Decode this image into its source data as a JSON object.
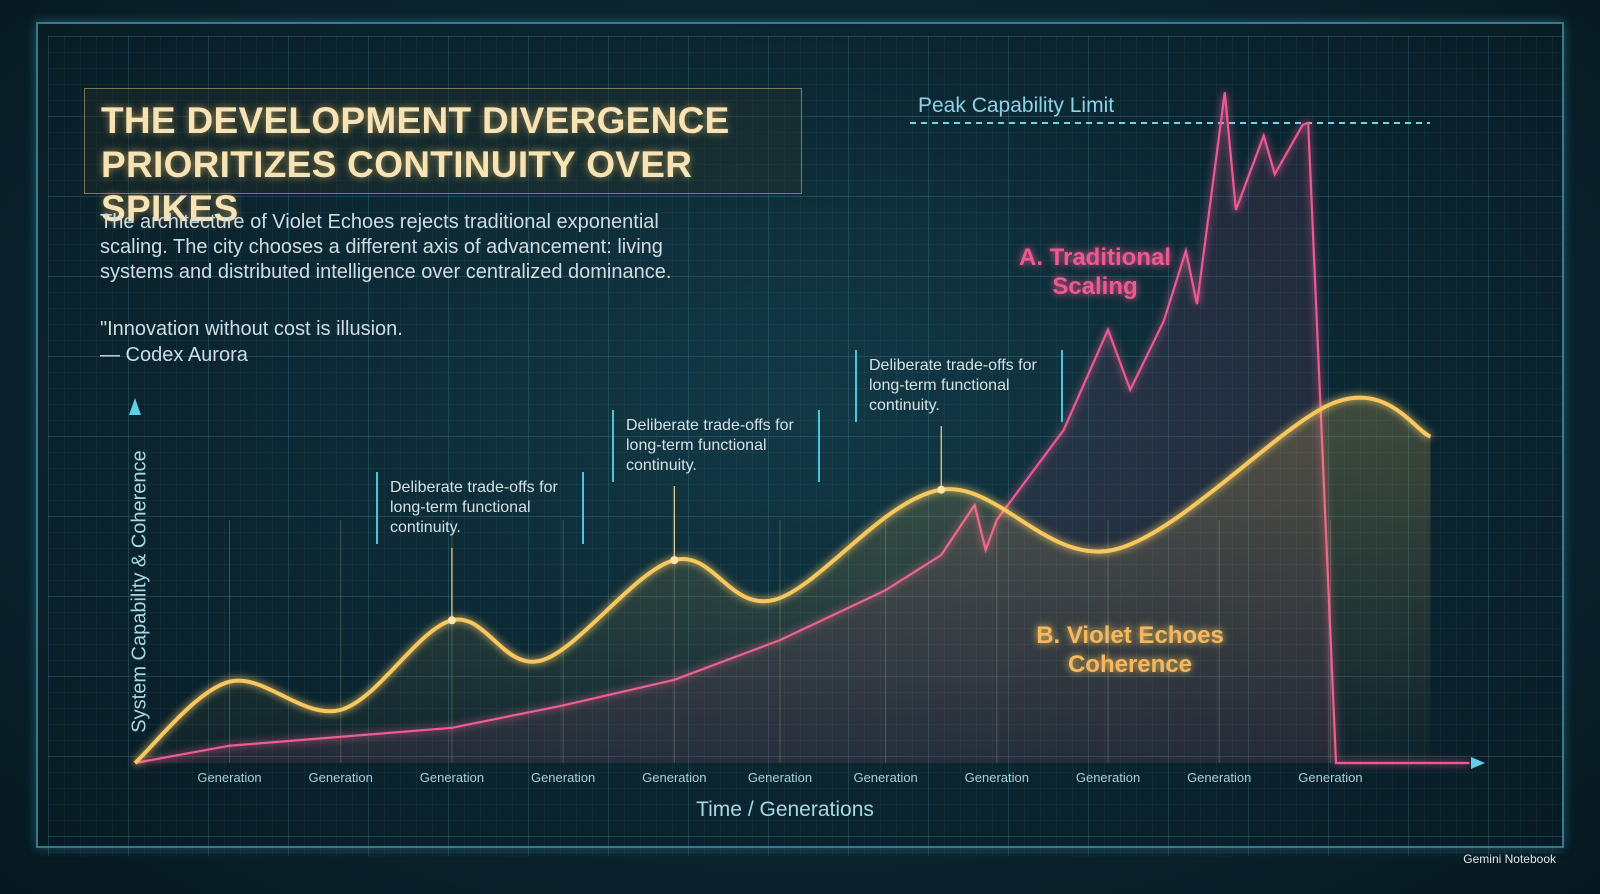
{
  "chart_data": {
    "type": "line",
    "title": [
      "THE DEVELOPMENT DIVERGENCE",
      "PRIORITIZES CONTINUITY OVER SPIKES"
    ],
    "subtitle": "The architecture of Violet Echoes rejects traditional exponential scaling. The city chooses a different axis of advancement: living systems and distributed intelligence over centralized dominance.",
    "quote": [
      "\"Innovation without cost is illusion.",
      "— Codex Aurora"
    ],
    "xlabel": "Time / Generations",
    "ylabel": "System Capability & Coherence",
    "xlim": [
      0.15,
      12.2
    ],
    "ylim": [
      0,
      105
    ],
    "xticks": [
      {
        "value": 1,
        "label": "Generation"
      },
      {
        "value": 2,
        "label": "Generation"
      },
      {
        "value": 3,
        "label": "Generation"
      },
      {
        "value": 4,
        "label": "Generation"
      },
      {
        "value": 5,
        "label": "Generation"
      },
      {
        "value": 5.95,
        "label": "Generation"
      },
      {
        "value": 6.9,
        "label": "Generation"
      },
      {
        "value": 7.9,
        "label": "Generation"
      },
      {
        "value": 8.9,
        "label": "Generation"
      },
      {
        "value": 9.9,
        "label": "Generation"
      },
      {
        "value": 10.9,
        "label": "Generation"
      }
    ],
    "reference_line": {
      "label": "Peak Capability Limit",
      "value": 100
    },
    "series": [
      {
        "name": "A. Traditional Scaling",
        "color": "#ec5a92",
        "smooth": false,
        "x": [
          0.15,
          1,
          3,
          4,
          5,
          5.95,
          6.9,
          7.4,
          7.7,
          7.8,
          7.9,
          8.5,
          8.9,
          9.1,
          9.4,
          9.6,
          9.7,
          9.95,
          10.05,
          10.3,
          10.4,
          10.65,
          10.7,
          10.95,
          12.15
        ],
        "values": [
          0,
          2.7,
          5.5,
          9,
          13,
          19.2,
          27,
          32.5,
          40.3,
          33.3,
          38,
          52,
          67.7,
          58.3,
          69,
          80,
          71.7,
          104.8,
          86.4,
          98,
          92,
          99.7,
          100,
          0,
          0
        ]
      },
      {
        "name": "B. Violet Echoes Coherence",
        "color": "#f7c85e",
        "smooth": true,
        "x": [
          0.15,
          1,
          2,
          3,
          3.8,
          5,
          5.9,
          7.4,
          8.95,
          10.95,
          11.8
        ],
        "values": [
          0,
          12.7,
          8.3,
          22.3,
          16,
          31.7,
          25.5,
          42.7,
          33.3,
          56.4,
          51
        ]
      }
    ],
    "annotations": [
      {
        "text": "Deliberate trade-offs for long-term functional continuity.",
        "x": 3,
        "y": 22.3
      },
      {
        "text": "Deliberate trade-offs for long-term functional continuity.",
        "x": 5,
        "y": 31.7
      },
      {
        "text": "Deliberate trade-offs for long-term functional continuity.",
        "x": 7.4,
        "y": 42.7
      }
    ],
    "footer": "Gemini Notebook"
  }
}
